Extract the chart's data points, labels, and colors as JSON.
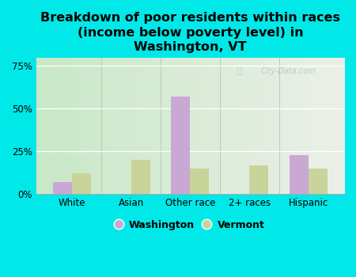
{
  "categories": [
    "White",
    "Asian",
    "Other race",
    "2+ races",
    "Hispanic"
  ],
  "washington_values": [
    7,
    0,
    57,
    0,
    23
  ],
  "vermont_values": [
    12,
    20,
    15,
    17,
    15
  ],
  "washington_color": "#c9a8d4",
  "vermont_color": "#c8d49a",
  "title": "Breakdown of poor residents within races\n(income below poverty level) in\nWashington, VT",
  "ylabel_ticks": [
    "0%",
    "25%",
    "50%",
    "75%"
  ],
  "ytick_values": [
    0,
    25,
    50,
    75
  ],
  "ylim": [
    0,
    80
  ],
  "background_color": "#00e8e8",
  "plot_bg_left": "#c8e8c8",
  "plot_bg_right": "#e8ede8",
  "watermark": "City-Data.com",
  "legend_washington": "Washington",
  "legend_vermont": "Vermont",
  "bar_width": 0.32,
  "title_fontsize": 11.5,
  "tick_fontsize": 8.5,
  "legend_fontsize": 9
}
